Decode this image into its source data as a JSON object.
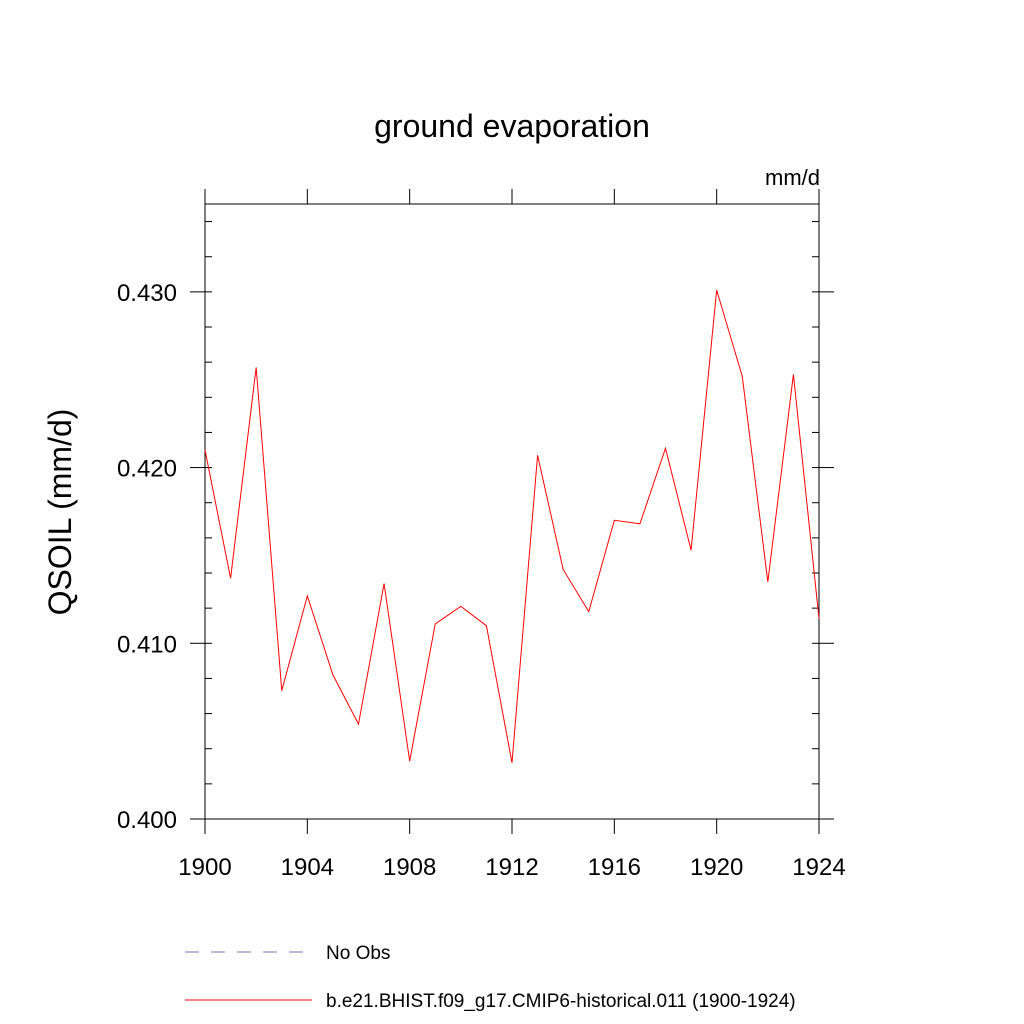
{
  "chart_data": {
    "type": "line",
    "title": "ground evaporation",
    "units": "mm/d",
    "xlabel": "",
    "ylabel": "QSOIL  (mm/d)",
    "xlim": [
      1900,
      1924
    ],
    "ylim": [
      0.4,
      0.435
    ],
    "x_ticks": [
      1900,
      1904,
      1908,
      1912,
      1916,
      1920,
      1924
    ],
    "x_tick_labels": [
      "1900",
      "1904",
      "1908",
      "1912",
      "1916",
      "1920",
      "1924"
    ],
    "y_ticks": [
      0.4,
      0.41,
      0.42,
      0.43
    ],
    "y_tick_labels": [
      "0.400",
      "0.410",
      "0.420",
      "0.430"
    ],
    "grid": false,
    "legend_position": "bottom",
    "series": [
      {
        "name": "No Obs",
        "color": "#7777bb",
        "style": "dashed",
        "x": [],
        "values": []
      },
      {
        "name": "b.e21.BHIST.f09_g17.CMIP6-historical.011 (1900-1924)",
        "color": "#ff0000",
        "style": "solid",
        "x": [
          1900,
          1901,
          1902,
          1903,
          1904,
          1905,
          1906,
          1907,
          1908,
          1909,
          1910,
          1911,
          1912,
          1913,
          1914,
          1915,
          1916,
          1917,
          1918,
          1919,
          1920,
          1921,
          1922,
          1923,
          1924
        ],
        "values": [
          0.421,
          0.4137,
          0.4257,
          0.4073,
          0.4127,
          0.4082,
          0.4054,
          0.4134,
          0.4033,
          0.4111,
          0.4121,
          0.411,
          0.4032,
          0.4207,
          0.4142,
          0.4118,
          0.417,
          0.4168,
          0.4211,
          0.4153,
          0.4301,
          0.4252,
          0.4135,
          0.4253,
          0.4114
        ]
      }
    ]
  }
}
